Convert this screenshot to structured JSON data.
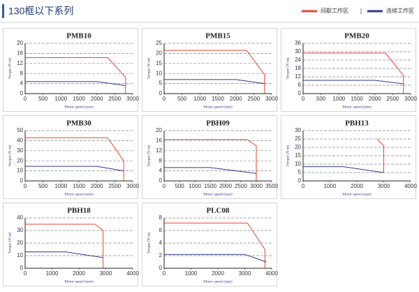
{
  "header": {
    "title": "130框以下系列",
    "legend": [
      {
        "label": "间歇工作区",
        "color": "#e8432f"
      },
      {
        "label": "连续工作区",
        "color": "#2b3a8c"
      }
    ]
  },
  "chart_data": [
    {
      "type": "line",
      "title": "PMB10",
      "x_label": "Motor speed (rpm)",
      "y_label": "Torque (N·m)",
      "xlim": [
        0,
        3000
      ],
      "xticks": [
        0,
        500,
        1000,
        1500,
        2000,
        2500,
        3000
      ],
      "ylim": [
        0,
        20
      ],
      "yticks": [
        0,
        4,
        8,
        12,
        16,
        20
      ],
      "grid": true,
      "series": [
        {
          "color": "#e8432f",
          "x": [
            0,
            2300,
            2800,
            2800
          ],
          "values": [
            14.3,
            14.3,
            6.5,
            0
          ]
        },
        {
          "color": "#2b3a8c",
          "x": [
            0,
            2000,
            2800
          ],
          "values": [
            4.8,
            4.8,
            3.2
          ]
        }
      ]
    },
    {
      "type": "line",
      "title": "PMB15",
      "x_label": "Motor speed (rpm)",
      "y_label": "Torque (N·m)",
      "xlim": [
        0,
        3000
      ],
      "xticks": [
        0,
        500,
        1000,
        1500,
        2000,
        2500,
        3000
      ],
      "ylim": [
        0,
        25
      ],
      "yticks": [
        0,
        5,
        10,
        15,
        20,
        25
      ],
      "grid": true,
      "series": [
        {
          "color": "#e8432f",
          "x": [
            0,
            2300,
            2800,
            2800
          ],
          "values": [
            21.5,
            21.5,
            9.5,
            0
          ]
        },
        {
          "color": "#2b3a8c",
          "x": [
            0,
            2000,
            2800
          ],
          "values": [
            7,
            7,
            5
          ]
        }
      ]
    },
    {
      "type": "line",
      "title": "PMB20",
      "x_label": "Motor speed (rpm)",
      "y_label": "Torque (N·m)",
      "xlim": [
        0,
        3000
      ],
      "xticks": [
        0,
        500,
        1000,
        1500,
        2000,
        2500,
        3000
      ],
      "ylim": [
        0,
        36
      ],
      "yticks": [
        0,
        6,
        12,
        18,
        24,
        30,
        36
      ],
      "grid": true,
      "series": [
        {
          "color": "#e8432f",
          "x": [
            0,
            2300,
            2800,
            2800
          ],
          "values": [
            29,
            29,
            13,
            0
          ]
        },
        {
          "color": "#2b3a8c",
          "x": [
            0,
            2000,
            2800
          ],
          "values": [
            9.5,
            9.5,
            7
          ]
        }
      ]
    },
    {
      "type": "line",
      "title": "PMB30",
      "x_label": "Motor speed (rpm)",
      "y_label": "Torque (N·m)",
      "xlim": [
        0,
        3000
      ],
      "xticks": [
        0,
        500,
        1000,
        1500,
        2000,
        2500,
        3000
      ],
      "ylim": [
        0,
        50
      ],
      "yticks": [
        0,
        10,
        20,
        30,
        40,
        50
      ],
      "grid": true,
      "series": [
        {
          "color": "#e8432f",
          "x": [
            0,
            2300,
            2750,
            2750
          ],
          "values": [
            43,
            43,
            20,
            0
          ]
        },
        {
          "color": "#2b3a8c",
          "x": [
            0,
            2000,
            2750
          ],
          "values": [
            14.5,
            14.5,
            10
          ]
        }
      ]
    },
    {
      "type": "line",
      "title": "PBH09",
      "x_label": "Motor speed (rpm)",
      "y_label": "Torque (N·m)",
      "xlim": [
        0,
        3500
      ],
      "xticks": [
        0,
        500,
        1000,
        1500,
        2000,
        2500,
        3000,
        3500
      ],
      "ylim": [
        0,
        20
      ],
      "yticks": [
        0,
        4,
        8,
        12,
        16,
        20
      ],
      "grid": true,
      "series": [
        {
          "color": "#e8432f",
          "x": [
            0,
            2700,
            3000,
            3000
          ],
          "values": [
            16.5,
            16.5,
            14,
            0
          ]
        },
        {
          "color": "#2b3a8c",
          "x": [
            0,
            1500,
            3000
          ],
          "values": [
            5.3,
            5.3,
            3
          ]
        }
      ]
    },
    {
      "type": "line",
      "title": "PBH13",
      "x_label": "Motor speed (rpm)",
      "y_label": "Torque (N·m)",
      "xlim": [
        0,
        4000
      ],
      "xticks": [
        0,
        1000,
        2000,
        3000,
        4000
      ],
      "ylim": [
        0,
        30
      ],
      "yticks": [
        0,
        5,
        10,
        15,
        20,
        25,
        30
      ],
      "grid": true,
      "series": [
        {
          "color": "#e8432f",
          "x": [
            2750,
            3000,
            3000
          ],
          "values": [
            25,
            21,
            5
          ]
        },
        {
          "color": "#2b3a8c",
          "x": [
            0,
            1500,
            3000
          ],
          "values": [
            8.5,
            8.5,
            5
          ]
        }
      ]
    },
    {
      "type": "line",
      "title": "PBH18",
      "x_label": "Motor speed (rpm)",
      "y_label": "Torque (N·m)",
      "xlim": [
        0,
        4000
      ],
      "xticks": [
        0,
        1000,
        2000,
        3000,
        4000
      ],
      "ylim": [
        0,
        40
      ],
      "yticks": [
        0,
        10,
        20,
        30,
        40
      ],
      "grid": true,
      "series": [
        {
          "color": "#e8432f",
          "x": [
            0,
            2600,
            2900,
            2900
          ],
          "values": [
            35,
            35,
            30,
            0
          ]
        },
        {
          "color": "#2b3a8c",
          "x": [
            0,
            1500,
            2900
          ],
          "values": [
            13,
            13,
            8.5
          ]
        }
      ]
    },
    {
      "type": "line",
      "title": "PLC08",
      "x_label": "Motor speed (rpm)",
      "y_label": "Torque (N·m)",
      "xlim": [
        0,
        4000
      ],
      "xticks": [
        0,
        1000,
        2000,
        3000,
        4000
      ],
      "ylim": [
        0,
        8
      ],
      "yticks": [
        0,
        2,
        4,
        6,
        8
      ],
      "grid": true,
      "series": [
        {
          "color": "#e8432f",
          "x": [
            0,
            3100,
            3750,
            3750
          ],
          "values": [
            7.2,
            7.2,
            3,
            0
          ]
        },
        {
          "color": "#2b3a8c",
          "x": [
            0,
            3000,
            3800
          ],
          "values": [
            2.2,
            2.2,
            1
          ]
        }
      ]
    }
  ]
}
